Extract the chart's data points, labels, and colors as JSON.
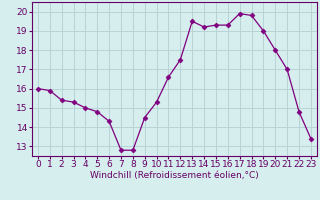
{
  "x": [
    0,
    1,
    2,
    3,
    4,
    5,
    6,
    7,
    8,
    9,
    10,
    11,
    12,
    13,
    14,
    15,
    16,
    17,
    18,
    19,
    20,
    21,
    22,
    23
  ],
  "y": [
    16.0,
    15.9,
    15.4,
    15.3,
    15.0,
    14.8,
    14.3,
    12.8,
    12.8,
    14.5,
    15.3,
    16.6,
    17.5,
    19.5,
    19.2,
    19.3,
    19.3,
    19.9,
    19.8,
    19.0,
    18.0,
    17.0,
    14.8,
    13.4
  ],
  "line_color": "#800080",
  "marker": "D",
  "marker_size": 2.5,
  "bg_color": "#d6eeee",
  "grid_color": "#b8d4d4",
  "xlabel": "Windchill (Refroidissement éolien,°C)",
  "xlabel_fontsize": 6.5,
  "tick_fontsize": 6.5,
  "ylim": [
    12.5,
    20.5
  ],
  "yticks": [
    13,
    14,
    15,
    16,
    17,
    18,
    19,
    20
  ],
  "xticks": [
    0,
    1,
    2,
    3,
    4,
    5,
    6,
    7,
    8,
    9,
    10,
    11,
    12,
    13,
    14,
    15,
    16,
    17,
    18,
    19,
    20,
    21,
    22,
    23
  ],
  "text_color": "#660066",
  "spine_color": "#660066"
}
